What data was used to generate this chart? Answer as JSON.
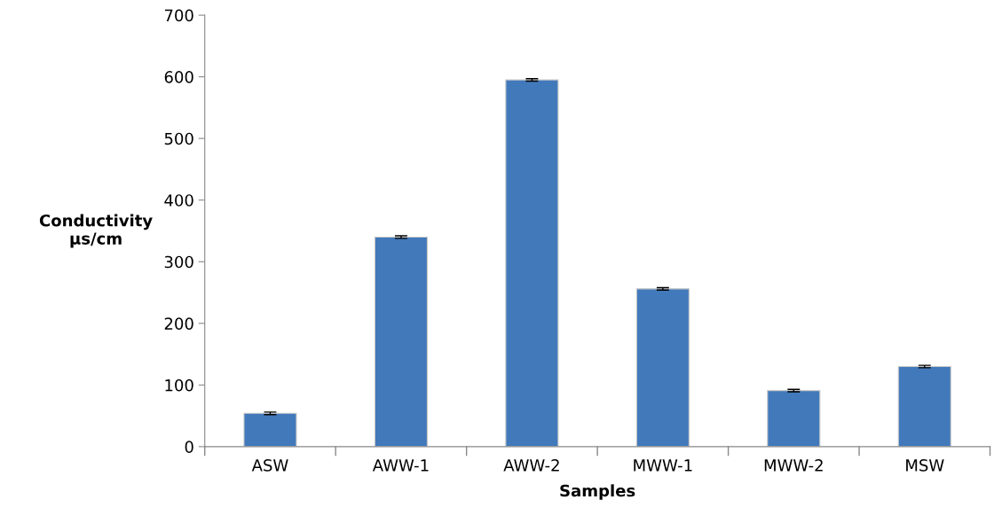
{
  "chart_data": {
    "type": "bar",
    "categories": [
      "ASW",
      "AWW-1",
      "AWW-2",
      "MWW-1",
      "MWW-2",
      "MSW"
    ],
    "values": [
      54,
      340,
      595,
      256,
      91,
      130
    ],
    "errors": [
      2,
      2,
      2,
      2,
      2,
      2
    ],
    "color": "#4179bb",
    "xlabel": "Samples",
    "ylabel": "Conductivity\nµs/cm",
    "ylim": [
      0,
      700
    ],
    "yticks": [
      0,
      100,
      200,
      300,
      400,
      500,
      600,
      700
    ],
    "grid": false,
    "legend": false
  }
}
